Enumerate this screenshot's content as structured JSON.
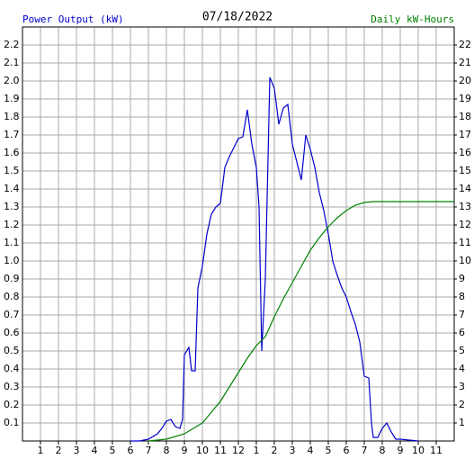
{
  "chart_data": {
    "type": "line",
    "title": "07/18/2022",
    "y_label": "Power Output (kW)",
    "y2_label": "Daily kW-Hours",
    "grid": true,
    "xlim": [
      0,
      24
    ],
    "xticks": [
      1,
      2,
      3,
      4,
      5,
      6,
      7,
      8,
      9,
      10,
      11,
      12,
      {
        "value": 13,
        "label": "1"
      },
      {
        "value": 14,
        "label": "2"
      },
      {
        "value": 15,
        "label": "3"
      },
      {
        "value": 16,
        "label": "4"
      },
      {
        "value": 17,
        "label": "5"
      },
      {
        "value": 18,
        "label": "6"
      },
      {
        "value": 19,
        "label": "7"
      },
      {
        "value": 20,
        "label": "8"
      },
      {
        "value": 21,
        "label": "9"
      },
      {
        "value": 22,
        "label": "10"
      },
      {
        "value": 23,
        "label": "11"
      }
    ],
    "ylim": [
      0,
      2.3
    ],
    "yticks": [
      0.1,
      0.2,
      0.3,
      0.4,
      0.5,
      0.6,
      0.7,
      0.8,
      0.9,
      {
        "value": 1,
        "label": "1.0"
      },
      1.1,
      1.2,
      1.3,
      1.4,
      1.5,
      1.6,
      1.7,
      1.8,
      1.9,
      {
        "value": 2,
        "label": "2.0"
      },
      2.1,
      2.2
    ],
    "y2lim": [
      0,
      23
    ],
    "y2ticks": [
      1,
      2,
      3,
      4,
      5,
      6,
      7,
      8,
      9,
      10,
      11,
      12,
      13,
      14,
      15,
      16,
      17,
      18,
      19,
      20,
      21,
      22
    ],
    "series": [
      {
        "color": "#0000cc",
        "x": [
          6,
          6.5,
          7,
          7.5,
          7.75,
          8,
          8.25,
          8.5,
          8.75,
          8.9,
          9,
          9.25,
          9.4,
          9.6,
          9.75,
          10,
          10.25,
          10.5,
          10.75,
          11,
          11.25,
          11.5,
          11.75,
          12,
          12.25,
          12.5,
          12.75,
          13,
          13.15,
          13.3,
          13.5,
          13.75,
          14,
          14.25,
          14.5,
          14.75,
          15,
          15.25,
          15.5,
          15.75,
          16,
          16.25,
          16.5,
          16.75,
          17,
          17.25,
          17.5,
          17.75,
          18,
          18.25,
          18.5,
          18.75,
          19,
          19.25,
          19.4,
          19.5,
          19.75,
          20,
          20.25,
          20.5,
          20.75,
          21,
          22
        ],
        "values": [
          0,
          0,
          0.01,
          0.04,
          0.07,
          0.11,
          0.12,
          0.08,
          0.07,
          0.12,
          0.48,
          0.52,
          0.39,
          0.39,
          0.85,
          0.97,
          1.15,
          1.26,
          1.3,
          1.32,
          1.52,
          1.58,
          1.63,
          1.68,
          1.69,
          1.84,
          1.65,
          1.52,
          1.3,
          0.5,
          0.9,
          2.02,
          1.96,
          1.76,
          1.85,
          1.87,
          1.65,
          1.55,
          1.45,
          1.7,
          1.62,
          1.52,
          1.38,
          1.28,
          1.15,
          1,
          0.92,
          0.85,
          0.8,
          0.72,
          0.65,
          0.55,
          0.36,
          0.35,
          0.1,
          0.02,
          0.02,
          0.07,
          0.1,
          0.05,
          0.01,
          0.01,
          0
        ]
      },
      {
        "color": "#008000",
        "axis": "y2",
        "x": [
          7,
          8,
          9,
          10,
          10.5,
          11,
          11.5,
          12,
          12.5,
          13,
          13.5,
          14,
          14.5,
          15,
          15.5,
          16,
          16.5,
          17,
          17.5,
          18,
          18.5,
          19,
          19.5,
          24
        ],
        "values": [
          0,
          0.1,
          0.4,
          1,
          1.6,
          2.2,
          3,
          3.8,
          4.6,
          5.3,
          5.8,
          6.9,
          7.9,
          8.8,
          9.7,
          10.6,
          11.3,
          11.9,
          12.4,
          12.8,
          13.1,
          13.25,
          13.3,
          13.3
        ]
      }
    ]
  }
}
